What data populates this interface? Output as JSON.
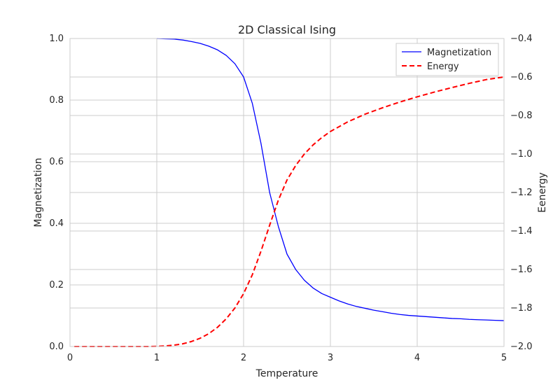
{
  "chart_data": {
    "type": "line",
    "title": "2D Classical Ising",
    "xlabel": "Temperature",
    "ylabel": "Magnetization",
    "y2label": "Eenergy",
    "xlim": [
      0,
      5
    ],
    "ylim": [
      0.0,
      1.0
    ],
    "y2lim": [
      -2.0,
      -0.4
    ],
    "x_ticks": [
      "0",
      "1",
      "2",
      "3",
      "4",
      "5"
    ],
    "y_ticks": [
      "0.0",
      "0.2",
      "0.4",
      "0.6",
      "0.8",
      "1.0"
    ],
    "y2_ticks": [
      "−2.0",
      "−1.8",
      "−1.6",
      "−1.4",
      "−1.2",
      "−1.0",
      "−0.8",
      "−0.6",
      "−0.4"
    ],
    "grid": true,
    "legend_position": "top-right",
    "series": [
      {
        "name": "Magnetization",
        "axis": "left",
        "color": "#0000ff",
        "style": "solid",
        "x": [
          1.0,
          1.1,
          1.2,
          1.3,
          1.4,
          1.5,
          1.6,
          1.7,
          1.8,
          1.9,
          2.0,
          2.1,
          2.2,
          2.3,
          2.4,
          2.5,
          2.6,
          2.7,
          2.8,
          2.9,
          3.0,
          3.1,
          3.2,
          3.3,
          3.4,
          3.5,
          3.6,
          3.7,
          3.8,
          3.9,
          4.0,
          4.1,
          4.2,
          4.3,
          4.4,
          4.5,
          4.6,
          4.7,
          4.8,
          4.9,
          5.0
        ],
        "y": [
          1.0,
          0.999,
          0.998,
          0.995,
          0.99,
          0.984,
          0.975,
          0.963,
          0.945,
          0.918,
          0.875,
          0.79,
          0.66,
          0.5,
          0.39,
          0.3,
          0.25,
          0.215,
          0.19,
          0.172,
          0.16,
          0.148,
          0.138,
          0.13,
          0.124,
          0.118,
          0.113,
          0.108,
          0.104,
          0.101,
          0.099,
          0.097,
          0.095,
          0.093,
          0.091,
          0.09,
          0.088,
          0.087,
          0.086,
          0.085,
          0.084
        ]
      },
      {
        "name": "Energy",
        "axis": "right",
        "color": "#ff0000",
        "style": "dashed",
        "x": [
          0.05,
          0.5,
          0.9,
          1.0,
          1.1,
          1.2,
          1.3,
          1.4,
          1.5,
          1.6,
          1.7,
          1.8,
          1.9,
          2.0,
          2.1,
          2.2,
          2.3,
          2.4,
          2.5,
          2.6,
          2.7,
          2.8,
          2.9,
          3.0,
          3.2,
          3.4,
          3.6,
          3.8,
          4.0,
          4.2,
          4.4,
          4.6,
          4.8,
          5.0
        ],
        "y": [
          -2.0,
          -2.0,
          -2.0,
          -1.999,
          -1.997,
          -1.993,
          -1.986,
          -1.974,
          -1.957,
          -1.933,
          -1.9,
          -1.856,
          -1.8,
          -1.725,
          -1.628,
          -1.505,
          -1.37,
          -1.24,
          -1.135,
          -1.06,
          -1.0,
          -0.953,
          -0.915,
          -0.883,
          -0.833,
          -0.793,
          -0.76,
          -0.73,
          -0.703,
          -0.678,
          -0.655,
          -0.633,
          -0.613,
          -0.6
        ]
      }
    ]
  }
}
